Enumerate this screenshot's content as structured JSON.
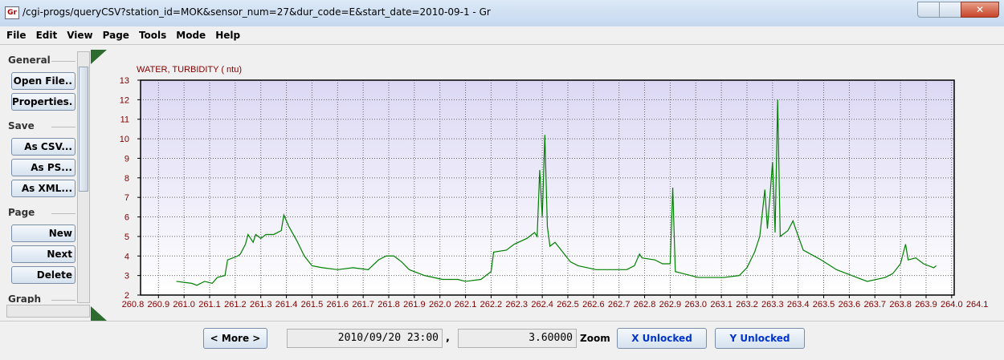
{
  "window": {
    "title": "/cgi-progs/queryCSV?station_id=MOK&sensor_num=27&dur_code=E&start_date=2010-09-1 - Gr",
    "icon": "Gr",
    "menu": [
      "File",
      "Edit",
      "View",
      "Page",
      "Tools",
      "Mode",
      "Help"
    ]
  },
  "sidebar": [
    {
      "label": "General",
      "buttons": [
        "Open File..",
        "Properties."
      ]
    },
    {
      "label": "Save",
      "buttons": [
        "As CSV...",
        "As PS...",
        "As XML..."
      ]
    },
    {
      "label": "Page",
      "buttons": [
        "New",
        "Next",
        "Delete"
      ]
    },
    {
      "label": "Graph",
      "buttons": []
    }
  ],
  "chart_data": {
    "type": "line",
    "ylabel": "WATER, TURBIDITY ( ntu)",
    "x": [
      260.97,
      261.03,
      261.05,
      261.08,
      261.11,
      261.13,
      261.16,
      261.17,
      261.21,
      261.22,
      261.24,
      261.25,
      261.27,
      261.28,
      261.3,
      261.32,
      261.35,
      261.38,
      261.39,
      261.41,
      261.44,
      261.47,
      261.5,
      261.54,
      261.6,
      261.66,
      261.72,
      261.76,
      261.79,
      261.82,
      261.85,
      261.88,
      261.94,
      262.01,
      262.07,
      262.1,
      262.16,
      262.2,
      262.21,
      262.26,
      262.29,
      262.34,
      262.37,
      262.38,
      262.39,
      262.4,
      262.41,
      262.42,
      262.43,
      262.45,
      262.48,
      262.51,
      262.54,
      262.61,
      262.67,
      262.73,
      262.76,
      262.78,
      262.79,
      262.84,
      262.87,
      262.9,
      262.91,
      262.92,
      262.95,
      263.01,
      263.11,
      263.17,
      263.2,
      263.23,
      263.25,
      263.27,
      263.28,
      263.3,
      263.31,
      263.32,
      263.33,
      263.36,
      263.38,
      263.39,
      263.42,
      263.49,
      263.55,
      263.61,
      263.67,
      263.74,
      263.77,
      263.8,
      263.82,
      263.83,
      263.86,
      263.89,
      263.93,
      263.94
    ],
    "series": [
      {
        "color": "#008000",
        "values": [
          2.7,
          2.6,
          2.5,
          2.7,
          2.6,
          2.9,
          3.0,
          3.8,
          4.0,
          4.1,
          4.6,
          5.1,
          4.7,
          5.1,
          4.9,
          5.1,
          5.1,
          5.3,
          6.1,
          5.5,
          4.8,
          4.0,
          3.5,
          3.4,
          3.3,
          3.4,
          3.3,
          3.8,
          4.0,
          4.0,
          3.7,
          3.3,
          3.0,
          2.8,
          2.8,
          2.7,
          2.8,
          3.2,
          4.2,
          4.3,
          4.6,
          4.9,
          5.2,
          5.0,
          8.4,
          6.0,
          10.2,
          5.5,
          4.5,
          4.7,
          4.2,
          3.7,
          3.5,
          3.3,
          3.3,
          3.3,
          3.5,
          4.1,
          3.9,
          3.8,
          3.6,
          3.6,
          7.5,
          3.2,
          3.1,
          2.9,
          2.9,
          3.0,
          3.4,
          4.2,
          5.0,
          7.4,
          5.4,
          8.8,
          5.2,
          12.0,
          5.0,
          5.3,
          5.8,
          5.4,
          4.3,
          3.8,
          3.3,
          3.0,
          2.7,
          2.9,
          3.1,
          3.6,
          4.6,
          3.8,
          3.9,
          3.6,
          3.4,
          3.5
        ]
      }
    ],
    "xlim": [
      260.83,
      264.01
    ],
    "ylim": [
      2,
      13
    ],
    "yticks": [
      2,
      3,
      4,
      5,
      6,
      7,
      8,
      9,
      10,
      11,
      12,
      13
    ],
    "xticks": [
      260.8,
      260.9,
      {
        "value": 261,
        "label": "261.0"
      },
      261.1,
      261.2,
      261.3,
      261.4,
      261.5,
      261.6,
      261.7,
      261.8,
      261.9,
      {
        "value": 262,
        "label": "262.0"
      },
      262.1,
      262.2,
      262.3,
      262.4,
      262.5,
      262.6,
      262.7,
      262.8,
      262.9,
      {
        "value": 263,
        "label": "263.0"
      },
      263.1,
      263.2,
      263.3,
      263.4,
      263.5,
      263.6,
      263.7,
      263.8,
      263.9,
      {
        "value": 264,
        "label": "264.0"
      },
      264.1
    ],
    "grid": true
  },
  "status": {
    "more": "< More >",
    "date": "2010/09/20 23:00",
    "sep": ",",
    "value": "3.60000",
    "zoom": "Zoom",
    "x_lock": "X Unlocked",
    "y_lock": "Y Unlocked"
  }
}
